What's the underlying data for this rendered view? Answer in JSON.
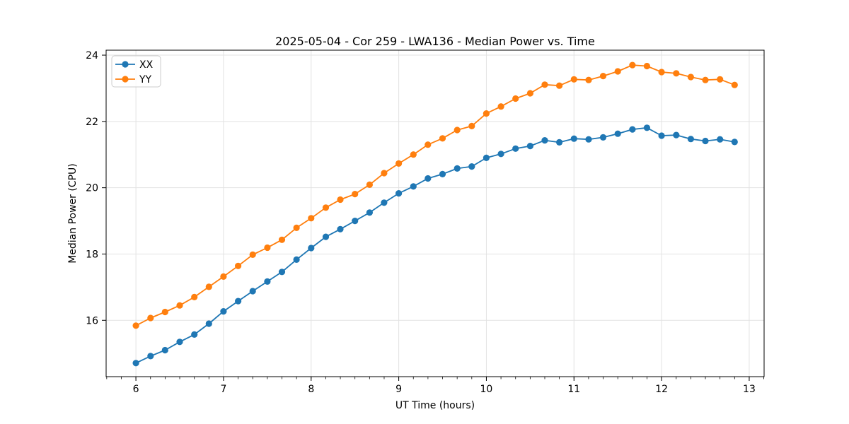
{
  "chart_data": {
    "type": "line",
    "title": "2025-05-04 - Cor 259 - LWA136 - Median Power vs. Time",
    "xlabel": "UT Time (hours)",
    "ylabel": "Median Power (CPU)",
    "xlim": [
      5.66,
      13.17
    ],
    "ylim": [
      14.3,
      24.15
    ],
    "xticks": [
      6,
      7,
      8,
      9,
      10,
      11,
      12,
      13
    ],
    "yticks": [
      16,
      18,
      20,
      22,
      24
    ],
    "x_minor_step": 0.1666667,
    "grid": true,
    "grid_color": "#e2e2e2",
    "legend": {
      "position": "upper-left",
      "entries": [
        "XX",
        "YY"
      ]
    },
    "x": [
      6.0,
      6.167,
      6.333,
      6.5,
      6.667,
      6.833,
      7.0,
      7.167,
      7.333,
      7.5,
      7.667,
      7.833,
      8.0,
      8.167,
      8.333,
      8.5,
      8.667,
      8.833,
      9.0,
      9.167,
      9.333,
      9.5,
      9.667,
      9.833,
      10.0,
      10.167,
      10.333,
      10.5,
      10.667,
      10.833,
      11.0,
      11.167,
      11.333,
      11.5,
      11.667,
      11.833,
      12.0,
      12.167,
      12.333,
      12.5,
      12.667,
      12.833
    ],
    "series": [
      {
        "name": "XX",
        "color": "#1f77b4",
        "values": [
          14.71,
          14.92,
          15.1,
          15.35,
          15.57,
          15.9,
          16.27,
          16.58,
          16.88,
          17.17,
          17.46,
          17.83,
          18.18,
          18.52,
          18.75,
          19.0,
          19.25,
          19.55,
          19.83,
          20.04,
          20.28,
          20.41,
          20.58,
          20.64,
          20.9,
          21.02,
          21.18,
          21.26,
          21.43,
          21.37,
          21.48,
          21.46,
          21.52,
          21.63,
          21.76,
          21.81,
          21.57,
          21.59,
          21.47,
          21.41,
          21.46,
          21.38
        ]
      },
      {
        "name": "YY",
        "color": "#ff7f0e",
        "values": [
          15.84,
          16.07,
          16.25,
          16.45,
          16.7,
          17.01,
          17.32,
          17.64,
          17.98,
          18.19,
          18.43,
          18.79,
          19.08,
          19.4,
          19.64,
          19.81,
          20.09,
          20.44,
          20.73,
          21.0,
          21.3,
          21.49,
          21.74,
          21.86,
          22.24,
          22.45,
          22.69,
          22.85,
          23.11,
          23.08,
          23.27,
          23.25,
          23.37,
          23.51,
          23.7,
          23.67,
          23.49,
          23.45,
          23.34,
          23.25,
          23.27,
          23.1
        ]
      }
    ]
  }
}
